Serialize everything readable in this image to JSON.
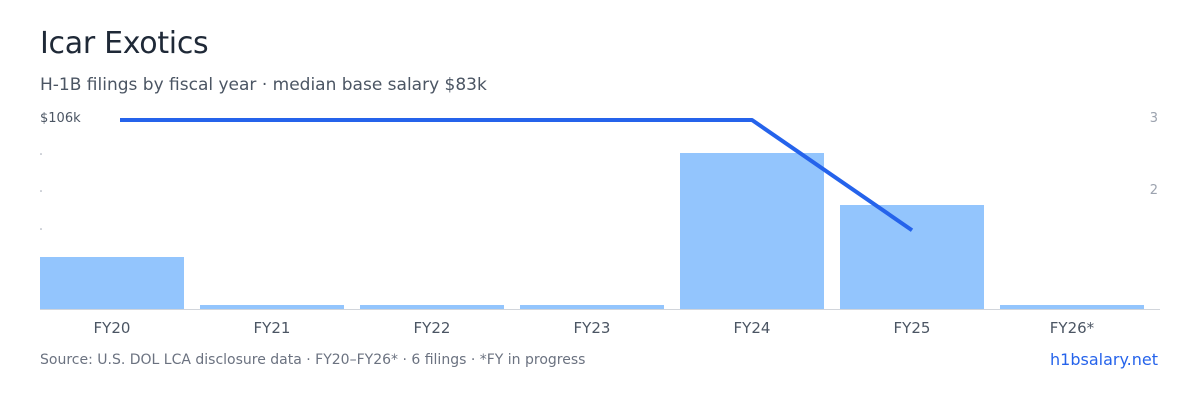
{
  "header": {
    "title": "Icar Exotics",
    "subtitle": "H-1B filings by fiscal year · median base salary $83k"
  },
  "axes": {
    "left_label": "$106k",
    "right_ticks": [
      "3",
      "2"
    ]
  },
  "footer": {
    "source": "Source: U.S. DOL LCA disclosure data · FY20–FY26* · 6 filings · *FY in progress",
    "brand": "h1bsalary.net"
  },
  "colors": {
    "bar": "#93c5fd",
    "line": "#2563eb",
    "axis": "#d1d5db"
  },
  "chart_data": {
    "type": "bar",
    "categories": [
      "FY20",
      "FY21",
      "FY22",
      "FY23",
      "FY24",
      "FY25",
      "FY26*"
    ],
    "series": [
      {
        "values": [
          1,
          0,
          0,
          0,
          3,
          2,
          0
        ]
      }
    ],
    "line": {
      "name": "median base salary",
      "values": [
        106,
        106,
        106,
        106,
        106,
        92,
        null
      ],
      "unit": "$k"
    },
    "bar_axis": {
      "ylim": [
        0,
        3
      ]
    },
    "line_axis": {
      "label": "$106k"
    },
    "grid": false
  }
}
